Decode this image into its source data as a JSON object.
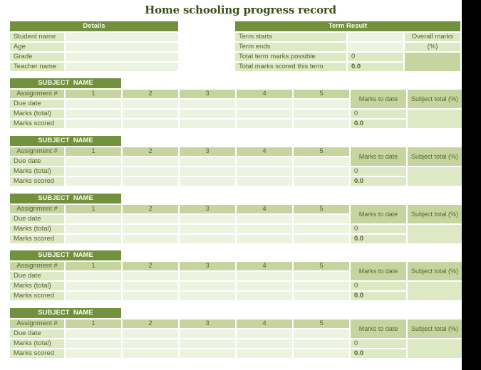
{
  "title": "Home schooling progress record",
  "details": {
    "header": "Details",
    "rows": [
      "Student name",
      "Age",
      "Grade",
      "Teacher name"
    ]
  },
  "term_result": {
    "header": "Term Result",
    "rows": [
      {
        "label": "Term starts",
        "value": ""
      },
      {
        "label": "Term ends",
        "value": ""
      },
      {
        "label": "Total term marks possible",
        "value": "0"
      },
      {
        "label": "Total marks scored this term",
        "value": "0.0"
      }
    ],
    "overall_marks_label": "Overall marks",
    "overall_marks_unit": "(%)"
  },
  "subject_block": {
    "header": "SUBJECT  NAME",
    "assignment_label": "Assignment #",
    "assignment_numbers": [
      "1",
      "2",
      "3",
      "4",
      "5"
    ],
    "marks_to_date_label": "Marks to date",
    "subject_total_label": "Subject total (%)",
    "row_labels": [
      "Due date",
      "Marks (total)",
      "Marks scored"
    ],
    "marks_total_value": "0",
    "marks_scored_value": "0.0"
  },
  "subject_count": 5,
  "colors": {
    "header_green": "#71913d",
    "medium_green": "#c6d5a0",
    "light_green": "#dde8c4",
    "pale_green": "#edf3e1",
    "text_green": "#55682c",
    "title_green": "#3c4e1b",
    "band_black": "#000000"
  }
}
